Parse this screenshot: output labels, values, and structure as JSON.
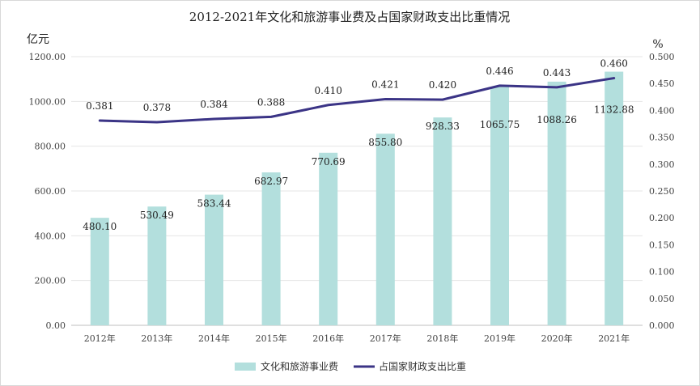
{
  "chart_data": {
    "type": "bar",
    "title": "2012-2021年文化和旅游事业费及占国家财政支出比重情况",
    "categories": [
      "2012年",
      "2013年",
      "2014年",
      "2015年",
      "2016年",
      "2017年",
      "2018年",
      "2019年",
      "2020年",
      "2021年"
    ],
    "series": [
      {
        "name": "文化和旅游事业费",
        "type": "bar",
        "axis": "left",
        "color": "#b3dfdd",
        "values": [
          480.1,
          530.49,
          583.44,
          682.97,
          770.69,
          855.8,
          928.33,
          1065.75,
          1088.26,
          1132.88
        ],
        "labels": [
          "480.10",
          "530.49",
          "583.44",
          "682.97",
          "770.69",
          "855.80",
          "928.33",
          "1065.75",
          "1088.26",
          "1132.88"
        ]
      },
      {
        "name": "占国家财政支出比重",
        "type": "line",
        "axis": "right",
        "color": "#3b3486",
        "values": [
          0.381,
          0.378,
          0.384,
          0.388,
          0.41,
          0.421,
          0.42,
          0.446,
          0.443,
          0.46
        ],
        "labels": [
          "0.381",
          "0.378",
          "0.384",
          "0.388",
          "0.410",
          "0.421",
          "0.420",
          "0.446",
          "0.443",
          "0.460"
        ]
      }
    ],
    "y_left": {
      "unit": "亿元",
      "ylim": [
        0,
        1200
      ],
      "ticks": [
        "0.00",
        "200.00",
        "400.00",
        "600.00",
        "800.00",
        "1000.00",
        "1200.00"
      ]
    },
    "y_right": {
      "unit": "%",
      "ylim": [
        0,
        0.5
      ],
      "ticks": [
        "0.000",
        "0.050",
        "0.100",
        "0.150",
        "0.200",
        "0.250",
        "0.300",
        "0.350",
        "0.400",
        "0.450",
        "0.500"
      ]
    },
    "grid": true,
    "legend_position": "bottom"
  }
}
